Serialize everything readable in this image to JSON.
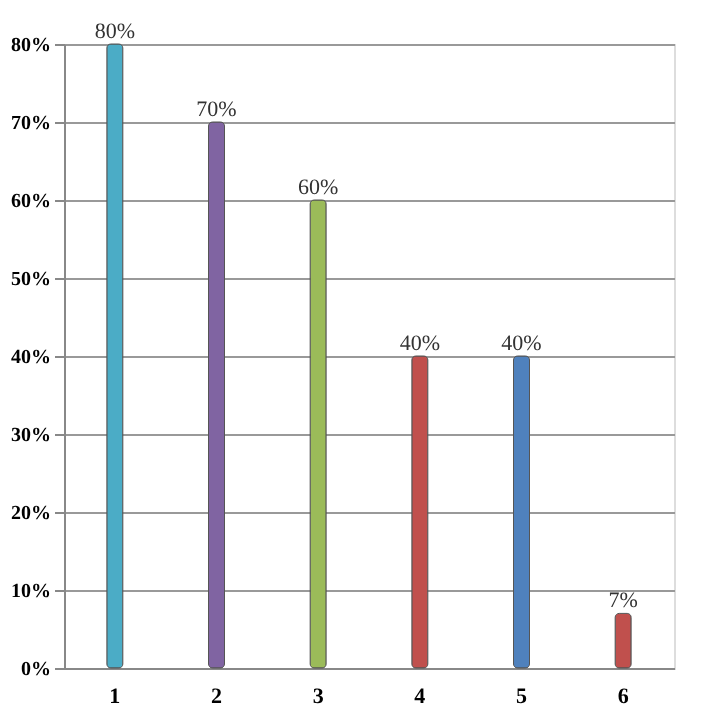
{
  "chart_data": {
    "type": "bar",
    "categories": [
      "1",
      "2",
      "3",
      "4",
      "5",
      "6"
    ],
    "values": [
      80,
      70,
      60,
      40,
      40,
      7
    ],
    "colors": [
      "#4bacc6",
      "#8064a2",
      "#9bbb59",
      "#c0504d",
      "#4f81bd",
      "#c0504d"
    ],
    "value_labels": [
      "80%",
      "70%",
      "60%",
      "40%",
      "40%",
      "7%"
    ],
    "ylim": [
      0,
      80
    ],
    "yticks": [
      {
        "value": 0,
        "label": "0%"
      },
      {
        "value": 10,
        "label": "10%"
      },
      {
        "value": 20,
        "label": "20%"
      },
      {
        "value": 30,
        "label": "30%"
      },
      {
        "value": 40,
        "label": "40%"
      },
      {
        "value": 50,
        "label": "50%"
      },
      {
        "value": 60,
        "label": "60%"
      },
      {
        "value": 70,
        "label": "70%"
      },
      {
        "value": 80,
        "label": "80%"
      }
    ],
    "grid": "y"
  }
}
